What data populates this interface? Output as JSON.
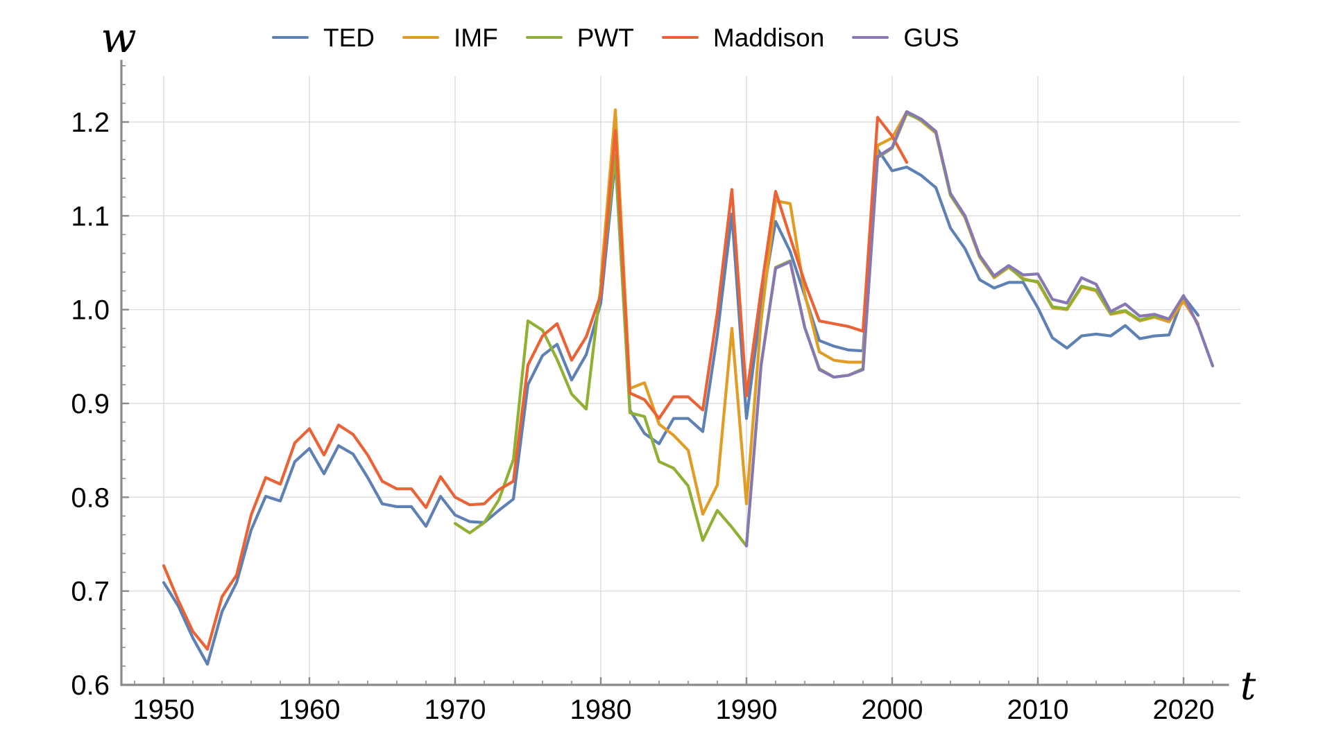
{
  "chart_data": {
    "type": "line",
    "title": "",
    "xlabel": "t",
    "ylabel": "w",
    "x_ticks": [
      1950,
      1960,
      1970,
      1980,
      1990,
      2000,
      2010,
      2020
    ],
    "y_ticks": [
      0.6,
      0.7,
      0.8,
      0.9,
      1.0,
      1.1,
      1.2
    ],
    "xlim": [
      1950,
      2022
    ],
    "ylim": [
      0.6,
      1.26
    ],
    "grid": "on",
    "legend_position": "top",
    "colors": {
      "axis": "#8a8a8a",
      "grid": "#d6d6d6",
      "tick_labels": "#000000",
      "background": "#ffffff"
    },
    "series": [
      {
        "name": "TED",
        "color": "#5e81b5",
        "start_year": 1950,
        "values": [
          0.709,
          0.684,
          0.65,
          0.622,
          0.678,
          0.709,
          0.765,
          0.801,
          0.796,
          0.838,
          0.852,
          0.825,
          0.855,
          0.846,
          0.821,
          0.793,
          0.79,
          0.79,
          0.769,
          0.801,
          0.781,
          0.774,
          0.773,
          0.786,
          0.798,
          0.92,
          0.951,
          0.963,
          0.925,
          0.952,
          1.007,
          1.16,
          0.893,
          0.868,
          0.857,
          0.884,
          0.884,
          0.87,
          0.973,
          1.102,
          0.884,
          1.003,
          1.094,
          1.062,
          1.015,
          0.967,
          0.961,
          0.957,
          0.956,
          1.171,
          1.148,
          1.152,
          1.143,
          1.13,
          1.087,
          1.065,
          1.032,
          1.023,
          1.029,
          1.029,
          1.002,
          0.97,
          0.959,
          0.972,
          0.974,
          0.972,
          0.983,
          0.969,
          0.972,
          0.973,
          1.014,
          0.994
        ]
      },
      {
        "name": "IMF",
        "color": "#e19c24",
        "start_year": 1980,
        "values": [
          1.03,
          1.213,
          0.916,
          0.922,
          0.878,
          0.866,
          0.85,
          0.782,
          0.813,
          0.98,
          0.793,
          0.988,
          1.116,
          1.113,
          1.017,
          0.955,
          0.946,
          0.944,
          0.944,
          1.175,
          1.183,
          1.211,
          1.201,
          1.188,
          1.122,
          1.098,
          1.056,
          1.034,
          1.045,
          1.033,
          1.029,
          1.002,
          1.0,
          1.024,
          1.02,
          0.995,
          0.998,
          0.988,
          0.992,
          0.987,
          1.009,
          0.985
        ]
      },
      {
        "name": "PWT",
        "color": "#8fb032",
        "start_year": 1970,
        "values": [
          0.772,
          0.762,
          0.773,
          0.797,
          0.84,
          0.988,
          0.978,
          0.947,
          0.91,
          0.894,
          1.025,
          1.165,
          0.89,
          0.886,
          0.838,
          0.831,
          0.812,
          0.754,
          0.786,
          0.768,
          0.748,
          0.94,
          1.045,
          1.052,
          0.981,
          0.937,
          0.928,
          0.93,
          0.937,
          1.162,
          1.172,
          1.209,
          1.202,
          1.189,
          1.122,
          1.099,
          1.057,
          1.035,
          1.046,
          1.032,
          1.03,
          1.003,
          1.001,
          1.025,
          1.021,
          0.996,
          0.999,
          0.989,
          0.993,
          0.99
        ]
      },
      {
        "name": "Maddison",
        "color": "#eb6235",
        "start_year": 1950,
        "values": [
          0.727,
          0.69,
          0.657,
          0.638,
          0.694,
          0.717,
          0.781,
          0.821,
          0.814,
          0.858,
          0.873,
          0.845,
          0.877,
          0.867,
          0.845,
          0.817,
          0.809,
          0.809,
          0.789,
          0.822,
          0.8,
          0.792,
          0.793,
          0.808,
          0.817,
          0.941,
          0.972,
          0.985,
          0.946,
          0.971,
          1.016,
          1.191,
          0.911,
          0.904,
          0.884,
          0.907,
          0.907,
          0.893,
          0.997,
          1.128,
          0.908,
          1.02,
          1.126,
          1.077,
          1.029,
          0.988,
          0.985,
          0.982,
          0.977,
          1.205,
          1.185,
          1.157
        ]
      },
      {
        "name": "GUS",
        "color": "#8778b3",
        "start_year": 1990,
        "values": [
          0.748,
          0.941,
          1.044,
          1.051,
          0.981,
          0.936,
          0.928,
          0.93,
          0.936,
          1.163,
          1.173,
          1.211,
          1.203,
          1.19,
          1.124,
          1.1,
          1.058,
          1.036,
          1.047,
          1.037,
          1.038,
          1.011,
          1.007,
          1.034,
          1.027,
          0.998,
          1.006,
          0.993,
          0.995,
          0.99,
          1.015,
          0.983,
          0.94
        ]
      }
    ]
  }
}
